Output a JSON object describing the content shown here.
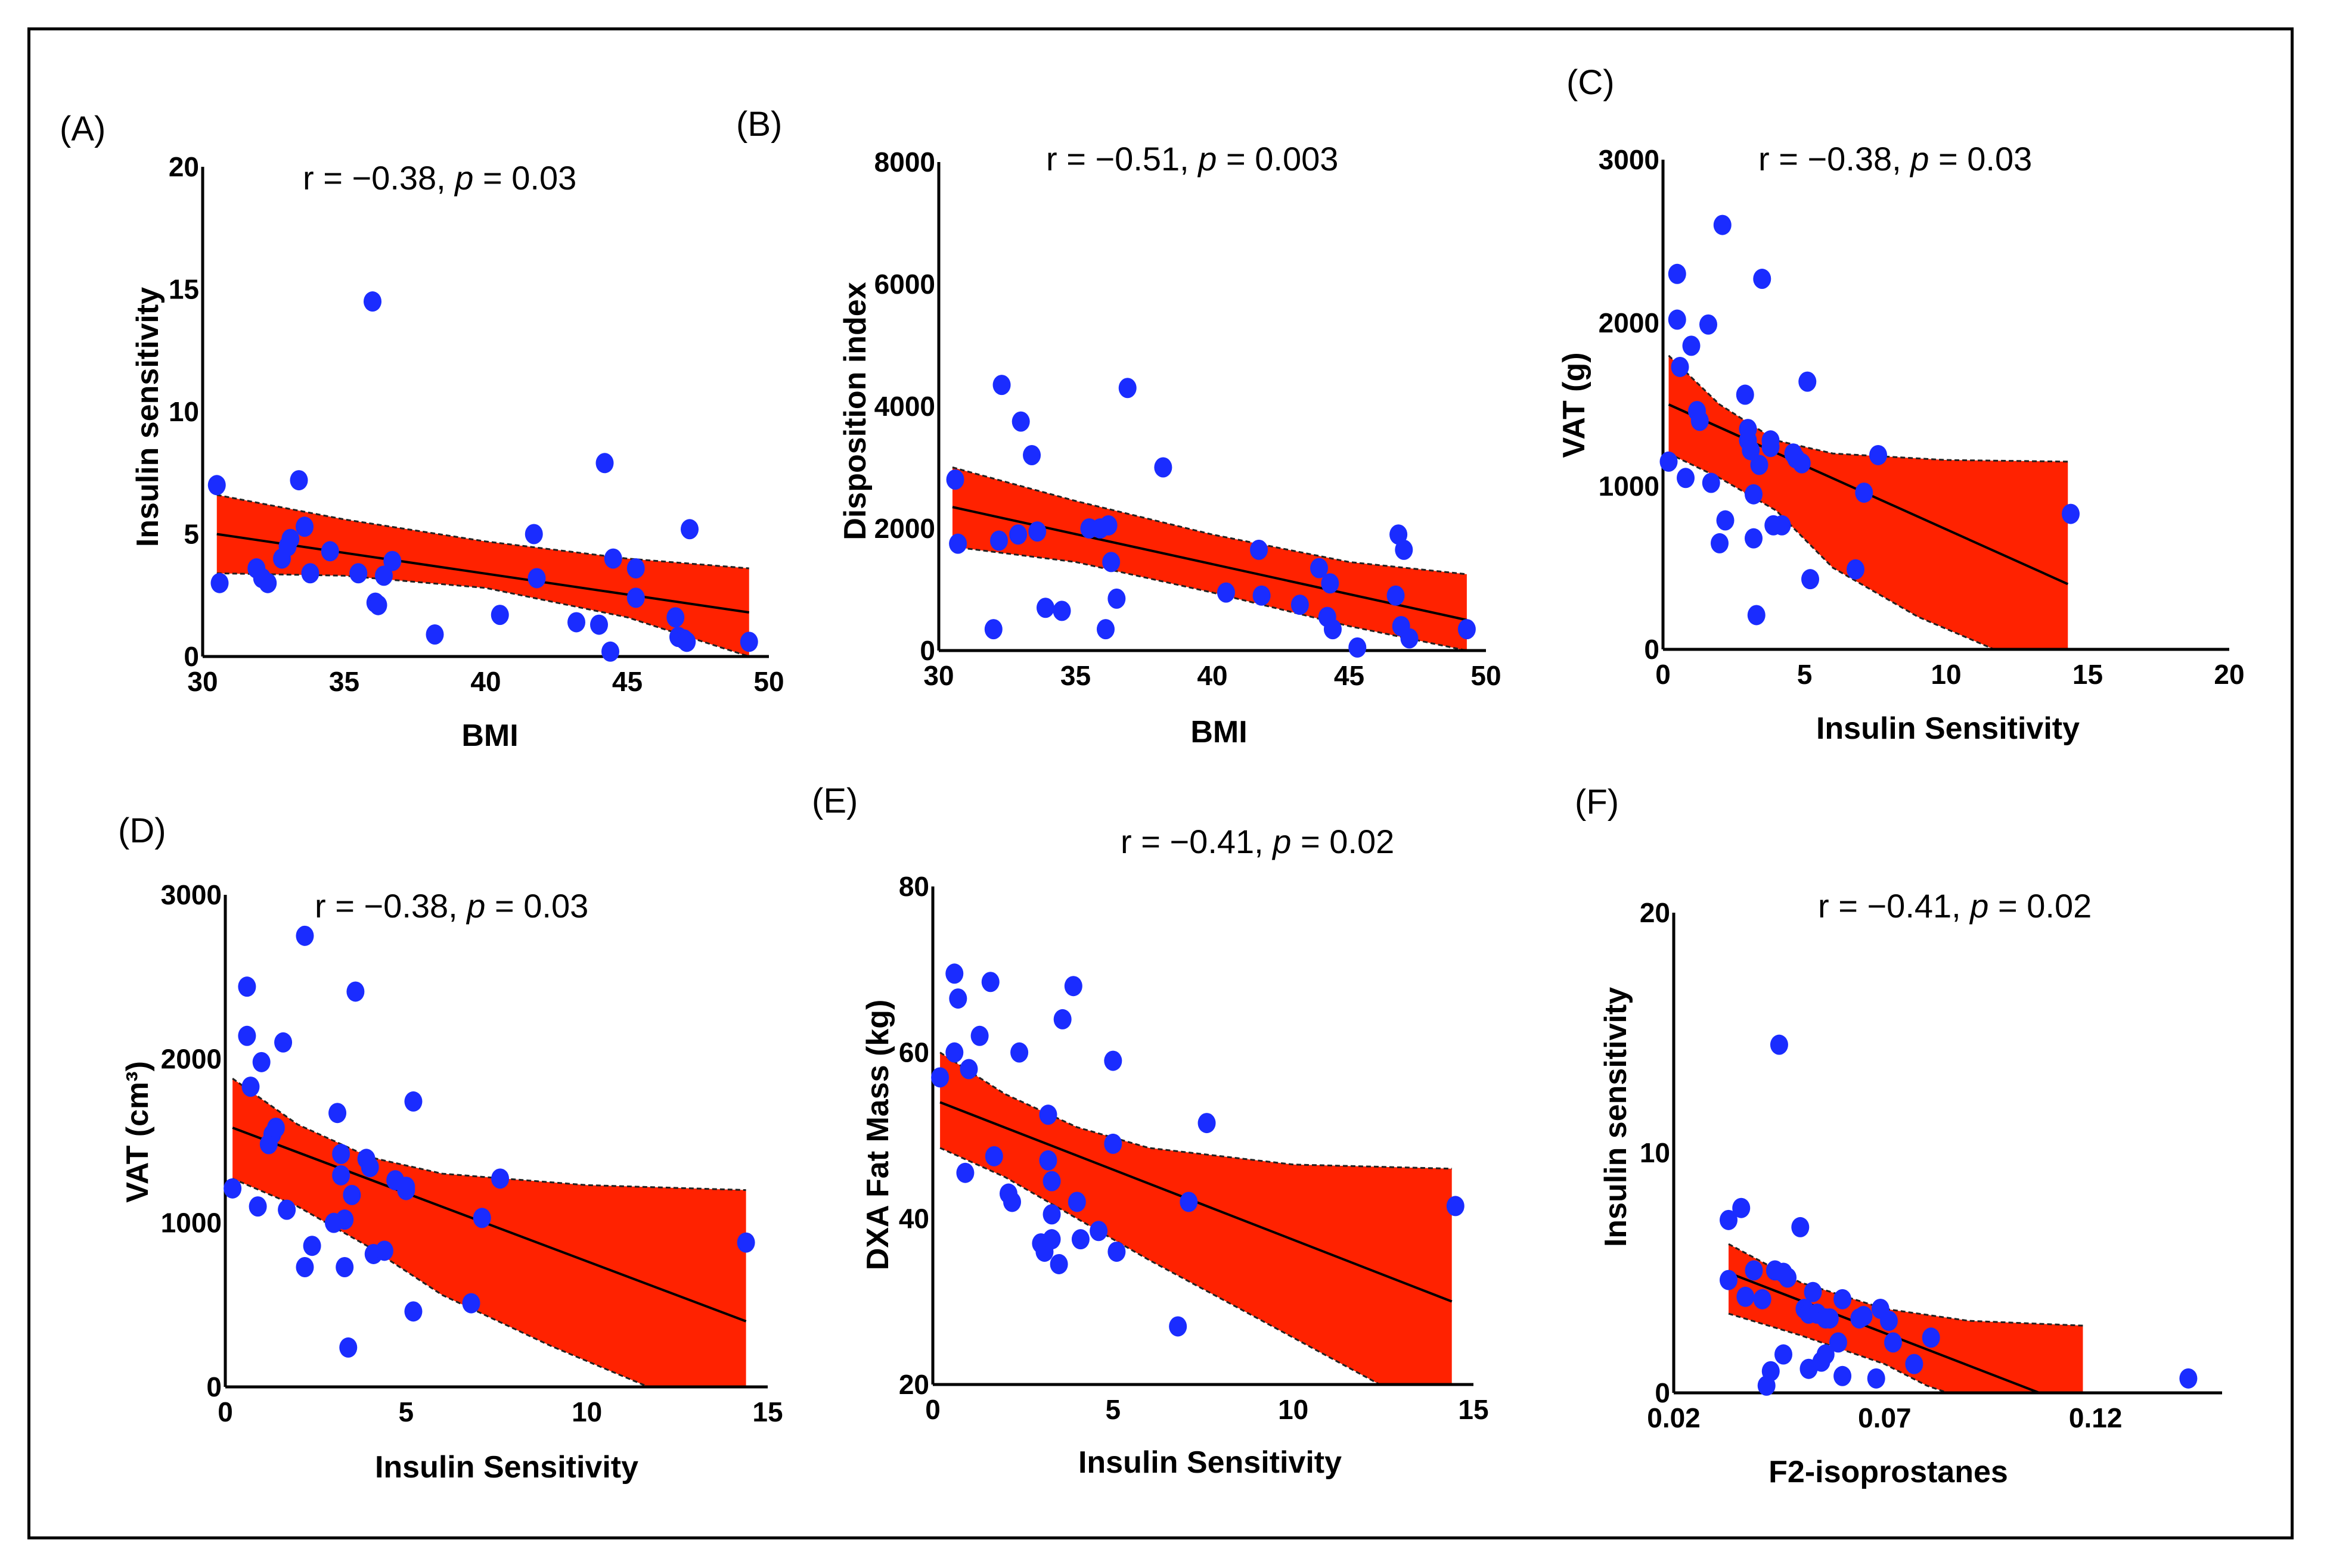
{
  "colors": {
    "band": "#ff2200",
    "points": "#1a2cff",
    "axis": "#000000"
  },
  "chart_data": [
    {
      "panel": "(A)",
      "type": "scatter",
      "stat_prefix": "r = −0.38, ",
      "stat_p": "p",
      "stat_suffix": " = 0.03",
      "xlabel": "BMI",
      "ylabel": "Insulin sensitivity",
      "xlim": [
        30,
        50
      ],
      "ylim": [
        0,
        20
      ],
      "xticks": [
        "30",
        "35",
        "40",
        "45",
        "50"
      ],
      "yticks": [
        "0",
        "5",
        "10",
        "15",
        "20"
      ],
      "xtick_values": [
        30,
        35,
        40,
        45,
        50
      ],
      "ytick_values": [
        0,
        5,
        10,
        15,
        20
      ],
      "fit": {
        "x0": 30.5,
        "y0": 5.0,
        "x1": 49.3,
        "y1": 1.8
      },
      "ci_upper": [
        [
          30.5,
          6.6
        ],
        [
          35,
          5.6
        ],
        [
          40,
          4.7
        ],
        [
          45,
          4.0
        ],
        [
          49.3,
          3.6
        ]
      ],
      "ci_lower": [
        [
          30.5,
          3.4
        ],
        [
          35,
          3.3
        ],
        [
          40,
          2.8
        ],
        [
          45,
          1.6
        ],
        [
          49.3,
          0.0
        ]
      ],
      "points": [
        [
          30.5,
          7.0
        ],
        [
          30.6,
          3.0
        ],
        [
          31.9,
          3.6
        ],
        [
          32.1,
          3.2
        ],
        [
          32.3,
          3.0
        ],
        [
          32.8,
          4.0
        ],
        [
          33.0,
          4.5
        ],
        [
          33.1,
          4.8
        ],
        [
          33.4,
          7.2
        ],
        [
          33.6,
          5.3
        ],
        [
          33.8,
          3.4
        ],
        [
          34.5,
          4.3
        ],
        [
          35.5,
          3.4
        ],
        [
          36.0,
          14.5
        ],
        [
          36.1,
          2.2
        ],
        [
          36.2,
          2.1
        ],
        [
          36.4,
          3.3
        ],
        [
          36.7,
          3.9
        ],
        [
          38.2,
          0.9
        ],
        [
          40.5,
          1.7
        ],
        [
          41.7,
          5.0
        ],
        [
          41.8,
          3.2
        ],
        [
          43.2,
          1.4
        ],
        [
          44.0,
          1.3
        ],
        [
          44.2,
          7.9
        ],
        [
          44.4,
          0.2
        ],
        [
          44.5,
          4.0
        ],
        [
          45.3,
          3.6
        ],
        [
          45.3,
          2.4
        ],
        [
          46.7,
          1.6
        ],
        [
          46.8,
          0.8
        ],
        [
          47.0,
          0.7
        ],
        [
          47.1,
          0.6
        ],
        [
          47.2,
          5.2
        ],
        [
          49.3,
          0.6
        ]
      ]
    },
    {
      "panel": "(B)",
      "type": "scatter",
      "stat_prefix": "r = −0.51, ",
      "stat_p": "p",
      "stat_suffix": " = 0.003",
      "xlabel": "BMI",
      "ylabel": "Disposition index",
      "xlim": [
        30,
        50
      ],
      "ylim": [
        0,
        8000
      ],
      "xticks": [
        "30",
        "35",
        "40",
        "45",
        "50"
      ],
      "yticks": [
        "0",
        "2000",
        "4000",
        "6000",
        "8000"
      ],
      "xtick_values": [
        30,
        35,
        40,
        45,
        50
      ],
      "ytick_values": [
        0,
        2000,
        4000,
        6000,
        8000
      ],
      "fit": {
        "x0": 30.5,
        "y0": 2350,
        "x1": 49.3,
        "y1": 500
      },
      "ci_upper": [
        [
          30.5,
          3000
        ],
        [
          35,
          2450
        ],
        [
          40,
          1900
        ],
        [
          45,
          1450
        ],
        [
          49.3,
          1250
        ]
      ],
      "ci_lower": [
        [
          30.5,
          1700
        ],
        [
          35,
          1450
        ],
        [
          40,
          950
        ],
        [
          45,
          400
        ],
        [
          49.3,
          0
        ]
      ],
      "points": [
        [
          30.6,
          2800
        ],
        [
          30.7,
          1750
        ],
        [
          32.0,
          350
        ],
        [
          32.2,
          1800
        ],
        [
          32.3,
          4350
        ],
        [
          32.9,
          1900
        ],
        [
          33.0,
          3750
        ],
        [
          33.4,
          3200
        ],
        [
          33.6,
          1950
        ],
        [
          33.9,
          700
        ],
        [
          34.5,
          650
        ],
        [
          35.5,
          2000
        ],
        [
          35.9,
          2000
        ],
        [
          36.1,
          350
        ],
        [
          36.2,
          2050
        ],
        [
          36.3,
          1450
        ],
        [
          36.5,
          850
        ],
        [
          36.9,
          4300
        ],
        [
          38.2,
          3000
        ],
        [
          40.5,
          950
        ],
        [
          41.7,
          1650
        ],
        [
          41.8,
          900
        ],
        [
          43.2,
          750
        ],
        [
          43.9,
          1350
        ],
        [
          44.2,
          550
        ],
        [
          44.3,
          1100
        ],
        [
          44.4,
          350
        ],
        [
          45.3,
          50
        ],
        [
          46.7,
          900
        ],
        [
          46.8,
          1900
        ],
        [
          46.9,
          400
        ],
        [
          47.0,
          1650
        ],
        [
          47.2,
          200
        ],
        [
          49.3,
          350
        ]
      ]
    },
    {
      "panel": "(C)",
      "type": "scatter",
      "stat_prefix": "r = −0.38, ",
      "stat_p": "p",
      "stat_suffix": " = 0.03",
      "xlabel": "Insulin Sensitivity",
      "ylabel": "VAT (g)",
      "xlim": [
        0,
        20
      ],
      "ylim": [
        0,
        3000
      ],
      "xticks": [
        "0",
        "5",
        "10",
        "15",
        "20"
      ],
      "yticks": [
        "0",
        "1000",
        "2000",
        "3000"
      ],
      "xtick_values": [
        0,
        5,
        10,
        15,
        20
      ],
      "ytick_values": [
        0,
        1000,
        2000,
        3000
      ],
      "fit": {
        "x0": 0.2,
        "y0": 1500,
        "x1": 14.3,
        "y1": 400
      },
      "ci_upper": [
        [
          0.2,
          1800
        ],
        [
          2,
          1500
        ],
        [
          4,
          1280
        ],
        [
          6,
          1200
        ],
        [
          10,
          1160
        ],
        [
          14.3,
          1150
        ]
      ],
      "ci_lower": [
        [
          0.2,
          1200
        ],
        [
          2,
          1050
        ],
        [
          4,
          850
        ],
        [
          6,
          500
        ],
        [
          9,
          200
        ],
        [
          11.7,
          0
        ]
      ],
      "points": [
        [
          0.2,
          1150
        ],
        [
          0.5,
          2300
        ],
        [
          0.5,
          2020
        ],
        [
          0.6,
          1730
        ],
        [
          0.8,
          1050
        ],
        [
          1.0,
          1860
        ],
        [
          1.2,
          1460
        ],
        [
          1.3,
          1400
        ],
        [
          1.6,
          1990
        ],
        [
          1.7,
          1020
        ],
        [
          2.0,
          650
        ],
        [
          2.1,
          2600
        ],
        [
          2.2,
          790
        ],
        [
          2.9,
          1560
        ],
        [
          3.0,
          1280
        ],
        [
          3.0,
          1350
        ],
        [
          3.1,
          1220
        ],
        [
          3.2,
          950
        ],
        [
          3.2,
          680
        ],
        [
          3.3,
          210
        ],
        [
          3.4,
          1130
        ],
        [
          3.5,
          2270
        ],
        [
          3.8,
          1280
        ],
        [
          3.8,
          1240
        ],
        [
          3.9,
          760
        ],
        [
          4.2,
          760
        ],
        [
          4.6,
          1200
        ],
        [
          4.7,
          1170
        ],
        [
          4.9,
          1140
        ],
        [
          5.1,
          1640
        ],
        [
          5.2,
          430
        ],
        [
          6.8,
          490
        ],
        [
          7.1,
          960
        ],
        [
          7.6,
          1190
        ],
        [
          14.4,
          830
        ]
      ]
    },
    {
      "panel": "(D)",
      "type": "scatter",
      "stat_prefix": "r = −0.38, ",
      "stat_p": "p",
      "stat_suffix": " = 0.03",
      "xlabel": "Insulin Sensitivity",
      "ylabel": "VAT (cm³)",
      "xlim": [
        0,
        15
      ],
      "ylim": [
        0,
        3000
      ],
      "xticks": [
        "0",
        "5",
        "10",
        "15"
      ],
      "yticks": [
        "0",
        "1000",
        "2000",
        "3000"
      ],
      "xtick_values": [
        0,
        5,
        10,
        15
      ],
      "ytick_values": [
        0,
        1000,
        2000,
        3000
      ],
      "fit": {
        "x0": 0.2,
        "y0": 1580,
        "x1": 14.4,
        "y1": 400
      },
      "ci_upper": [
        [
          0.2,
          1880
        ],
        [
          2,
          1600
        ],
        [
          4,
          1400
        ],
        [
          6,
          1300
        ],
        [
          10,
          1230
        ],
        [
          14.4,
          1200
        ]
      ],
      "ci_lower": [
        [
          0.2,
          1270
        ],
        [
          2,
          1100
        ],
        [
          4,
          850
        ],
        [
          6,
          560
        ],
        [
          9,
          250
        ],
        [
          11.7,
          0
        ]
      ],
      "points": [
        [
          0.2,
          1210
        ],
        [
          0.6,
          2440
        ],
        [
          0.6,
          2140
        ],
        [
          0.7,
          1830
        ],
        [
          0.9,
          1100
        ],
        [
          1.0,
          1980
        ],
        [
          1.2,
          1480
        ],
        [
          1.3,
          1540
        ],
        [
          1.4,
          1580
        ],
        [
          1.6,
          2100
        ],
        [
          1.7,
          1080
        ],
        [
          2.2,
          730
        ],
        [
          2.2,
          2750
        ],
        [
          2.4,
          860
        ],
        [
          3.0,
          1000
        ],
        [
          3.1,
          1670
        ],
        [
          3.2,
          1290
        ],
        [
          3.2,
          1420
        ],
        [
          3.3,
          1020
        ],
        [
          3.3,
          730
        ],
        [
          3.4,
          240
        ],
        [
          3.5,
          1170
        ],
        [
          3.6,
          2410
        ],
        [
          3.9,
          1390
        ],
        [
          4.0,
          1340
        ],
        [
          4.1,
          810
        ],
        [
          4.4,
          830
        ],
        [
          4.7,
          1260
        ],
        [
          5.0,
          1200
        ],
        [
          5.0,
          1220
        ],
        [
          5.2,
          1740
        ],
        [
          5.2,
          460
        ],
        [
          6.8,
          510
        ],
        [
          7.1,
          1030
        ],
        [
          7.6,
          1270
        ],
        [
          14.4,
          880
        ]
      ]
    },
    {
      "panel": "(E)",
      "type": "scatter",
      "stat_prefix": "r = −0.41, ",
      "stat_p": "p",
      "stat_suffix": " = 0.02",
      "xlabel": "Insulin Sensitivity",
      "ylabel": "DXA Fat Mass (kg)",
      "xlim": [
        0,
        15
      ],
      "ylim": [
        20,
        80
      ],
      "xticks": [
        "0",
        "5",
        "10",
        "15"
      ],
      "yticks": [
        "20",
        "40",
        "60",
        "80"
      ],
      "xtick_values": [
        0,
        5,
        10,
        15
      ],
      "ytick_values": [
        20,
        40,
        60,
        80
      ],
      "fit": {
        "x0": 0.2,
        "y0": 54,
        "x1": 14.4,
        "y1": 30
      },
      "ci_upper": [
        [
          0.2,
          60
        ],
        [
          2,
          55
        ],
        [
          4,
          51
        ],
        [
          6,
          48.5
        ],
        [
          10,
          46.5
        ],
        [
          14.4,
          46
        ]
      ],
      "ci_lower": [
        [
          0.2,
          48.5
        ],
        [
          2,
          45
        ],
        [
          4,
          40
        ],
        [
          6,
          35
        ],
        [
          9,
          28
        ],
        [
          12.4,
          20
        ]
      ],
      "points": [
        [
          0.2,
          57
        ],
        [
          0.6,
          69.5
        ],
        [
          0.6,
          60
        ],
        [
          0.7,
          66.5
        ],
        [
          0.9,
          45.5
        ],
        [
          1.0,
          58
        ],
        [
          1.3,
          62
        ],
        [
          1.6,
          68.5
        ],
        [
          1.7,
          47.5
        ],
        [
          2.1,
          43
        ],
        [
          2.2,
          42
        ],
        [
          2.4,
          60
        ],
        [
          3.0,
          37
        ],
        [
          3.1,
          36
        ],
        [
          3.2,
          52.5
        ],
        [
          3.2,
          47
        ],
        [
          3.3,
          44.5
        ],
        [
          3.3,
          40.5
        ],
        [
          3.3,
          37.5
        ],
        [
          3.5,
          34.5
        ],
        [
          3.6,
          64
        ],
        [
          3.9,
          68
        ],
        [
          4.0,
          42
        ],
        [
          4.1,
          37.5
        ],
        [
          4.6,
          38.5
        ],
        [
          5.0,
          49
        ],
        [
          5.0,
          59
        ],
        [
          5.1,
          36
        ],
        [
          6.8,
          27
        ],
        [
          7.1,
          42
        ],
        [
          7.6,
          51.5
        ],
        [
          14.5,
          41.5
        ]
      ]
    },
    {
      "panel": "(F)",
      "type": "scatter",
      "stat_prefix": "r = −0.41, ",
      "stat_p": "p",
      "stat_suffix": " = 0.02",
      "xlabel": "F2-isoprostanes",
      "ylabel": "Insulin sensitivity",
      "xlim": [
        0.02,
        0.15
      ],
      "ylim": [
        0,
        20
      ],
      "xticks": [
        "0.02",
        "0.07",
        "0.12"
      ],
      "yticks": [
        "0",
        "10",
        "20"
      ],
      "xtick_values": [
        0.02,
        0.07,
        0.12
      ],
      "ytick_values": [
        0,
        10,
        20
      ],
      "fit": {
        "x0": 0.033,
        "y0": 5.0,
        "x1": 0.117,
        "y1": -0.7
      },
      "ci_upper": [
        [
          0.033,
          6.2
        ],
        [
          0.05,
          4.6
        ],
        [
          0.07,
          3.5
        ],
        [
          0.09,
          3.0
        ],
        [
          0.117,
          2.8
        ]
      ],
      "ci_lower": [
        [
          0.033,
          3.3
        ],
        [
          0.05,
          2.4
        ],
        [
          0.07,
          1.2
        ],
        [
          0.08,
          0.3
        ],
        [
          0.085,
          0
        ]
      ],
      "points": [
        [
          0.033,
          7.2
        ],
        [
          0.033,
          4.7
        ],
        [
          0.036,
          7.7
        ],
        [
          0.037,
          4.0
        ],
        [
          0.039,
          5.1
        ],
        [
          0.041,
          3.9
        ],
        [
          0.042,
          0.3
        ],
        [
          0.043,
          0.9
        ],
        [
          0.044,
          5.1
        ],
        [
          0.045,
          14.5
        ],
        [
          0.046,
          5.0
        ],
        [
          0.046,
          1.6
        ],
        [
          0.047,
          4.8
        ],
        [
          0.05,
          6.9
        ],
        [
          0.051,
          3.5
        ],
        [
          0.052,
          3.3
        ],
        [
          0.052,
          1.0
        ],
        [
          0.053,
          4.2
        ],
        [
          0.054,
          3.3
        ],
        [
          0.055,
          1.3
        ],
        [
          0.056,
          3.1
        ],
        [
          0.056,
          1.6
        ],
        [
          0.057,
          3.1
        ],
        [
          0.059,
          2.1
        ],
        [
          0.06,
          0.7
        ],
        [
          0.06,
          3.9
        ],
        [
          0.064,
          3.1
        ],
        [
          0.065,
          3.2
        ],
        [
          0.068,
          0.6
        ],
        [
          0.069,
          3.5
        ],
        [
          0.071,
          3.0
        ],
        [
          0.072,
          2.1
        ],
        [
          0.077,
          1.2
        ],
        [
          0.081,
          2.3
        ],
        [
          0.142,
          0.6
        ]
      ]
    }
  ]
}
